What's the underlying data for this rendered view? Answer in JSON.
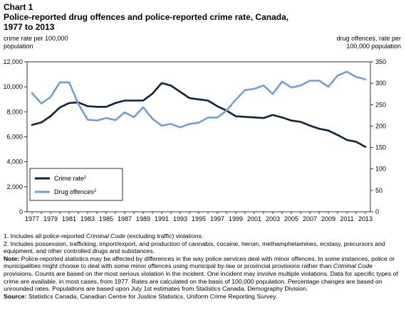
{
  "heading": {
    "number": "Chart 1",
    "title_line1": "Police-reported drug offences and police-reported crime rate, Canada,",
    "title_line2": "1977 to 2013"
  },
  "chart_data": {
    "type": "line",
    "left_axis_label_line1": "crime rate per 100,000",
    "left_axis_label_line2": "population",
    "right_axis_label_line1": "drug offences, rate per",
    "right_axis_label_line2": "100,000 population",
    "x": [
      1977,
      1978,
      1979,
      1980,
      1981,
      1982,
      1983,
      1984,
      1985,
      1986,
      1987,
      1988,
      1989,
      1990,
      1991,
      1992,
      1993,
      1994,
      1995,
      1996,
      1997,
      1998,
      1999,
      2000,
      2001,
      2002,
      2003,
      2004,
      2005,
      2006,
      2007,
      2008,
      2009,
      2010,
      2011,
      2012,
      2013
    ],
    "x_tick_labels": [
      "1977",
      "1979",
      "1981",
      "1983",
      "1985",
      "1987",
      "1989",
      "1991",
      "1993",
      "1995",
      "1997",
      "1999",
      "2001",
      "2003",
      "2005",
      "2007",
      "2009",
      "2011",
      "2013"
    ],
    "left_axis": {
      "min": 0,
      "max": 12000,
      "ticks": [
        "0",
        "2,000",
        "4,000",
        "6,000",
        "8,000",
        "10,000",
        "12,000"
      ]
    },
    "right_axis": {
      "min": 0,
      "max": 350,
      "ticks": [
        "0",
        "50",
        "100",
        "150",
        "200",
        "250",
        "300",
        "350"
      ]
    },
    "series": [
      {
        "name": "Crime rate",
        "superscript": "1",
        "axis": "left",
        "color": "#0d2240",
        "values": [
          6950,
          7150,
          7650,
          8350,
          8700,
          8750,
          8450,
          8400,
          8400,
          8700,
          8900,
          8900,
          8900,
          9450,
          10300,
          10100,
          9600,
          9100,
          9000,
          8900,
          8450,
          8100,
          7650,
          7600,
          7550,
          7500,
          7750,
          7550,
          7300,
          7200,
          6900,
          6650,
          6500,
          6150,
          5750,
          5600,
          5200
        ]
      },
      {
        "name": "Drug offences",
        "superscript": "2",
        "axis": "right",
        "color": "#6f9fd8",
        "values": [
          277,
          253,
          268,
          302,
          302,
          252,
          215,
          213,
          219,
          214,
          232,
          221,
          244,
          217,
          201,
          205,
          197,
          205,
          208,
          220,
          220,
          236,
          262,
          284,
          287,
          295,
          275,
          304,
          290,
          295,
          306,
          306,
          292,
          318,
          327,
          315,
          309
        ]
      }
    ],
    "legend_position": "bottom-left",
    "grid": false
  },
  "notes": {
    "note1_a": "1. Includes all police-reported ",
    "note1_i": "Criminal Code",
    "note1_b": " (excluding traffic) violations.",
    "note2_a": "2. Includes possession, trafficking, import/export, and production of cannabis, cocaine, heroin, methamphetamines, ecstasy, precursors and equipment, and other controlled drugs and substances.",
    "note_label": "Note:",
    "note_a": " Police-reported statistics may be affected by differences in the way police services deal with minor offences. In some instances, police or municipalities might choose to deal with some minor offences using municipal by-law or provincial provisions rather than ",
    "note_i": "Criminal Code",
    "note_b": " provisions. Counts are based on the most serious violation in the incident. One incident may involve multiple violations. Data for specific types of crime are available, in most cases, from 1977. Rates are calculated on the basis of 100,000 population. Percentage changes are based on unrounded rates. Populations are based upon July 1st estimates from Statistics Canada, Demography Division.",
    "source_label": "Source:",
    "source_text": " Statistics Canada, Canadian Centre for Justice Statistics, Uniform Crime Reporting Survey."
  }
}
